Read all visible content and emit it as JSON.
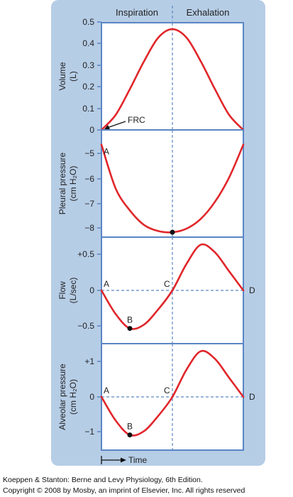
{
  "header": {
    "inspiration": "Inspiration",
    "exhalation": "Exhalation"
  },
  "time_label": "Time",
  "credit": {
    "line1": "Koeppen & Stanton: Berne and Levy Physiology, 6th Edition.",
    "line2": "Copyright © 2008 by Mosby, an imprint of Elsevier, Inc. All rights reserved"
  },
  "colors": {
    "curve": "#e0262a",
    "frame": "#5a86c4",
    "background": "#b6cde6",
    "plot": "#ffffff"
  },
  "chart_data": [
    {
      "type": "line",
      "ylabel": [
        "Volume",
        "(L)"
      ],
      "ylim": [
        0,
        0.5
      ],
      "yticks": [
        "0",
        "0.1",
        "0.2",
        "0.3",
        "0.4",
        "0.5"
      ],
      "x": [
        0,
        0.1,
        0.2,
        0.3,
        0.4,
        0.5,
        0.6,
        0.7,
        0.8,
        0.9,
        1.0
      ],
      "series": [
        {
          "values": [
            0.0,
            0.07,
            0.19,
            0.32,
            0.43,
            0.47,
            0.43,
            0.32,
            0.19,
            0.07,
            0.0
          ]
        }
      ],
      "annotations": [
        {
          "text": "FRC",
          "x": 0,
          "y": 0
        }
      ]
    },
    {
      "type": "line",
      "ylabel": [
        "Pleural pressure",
        "(cm H₂O)"
      ],
      "ylim": [
        -8.4,
        -4
      ],
      "yticks": [
        "−5",
        "−6",
        "−7",
        "−8"
      ],
      "x": [
        0,
        0.1,
        0.2,
        0.3,
        0.4,
        0.5,
        0.6,
        0.7,
        0.8,
        0.9,
        1.0
      ],
      "series": [
        {
          "values": [
            -4.6,
            -6.4,
            -7.3,
            -7.9,
            -8.15,
            -8.2,
            -8.05,
            -7.65,
            -6.95,
            -5.95,
            -4.6
          ]
        }
      ],
      "points": [
        {
          "label": "A",
          "x": 0,
          "y": -4.6
        },
        {
          "label": "",
          "x": 0.5,
          "y": -8.2
        }
      ]
    },
    {
      "type": "line",
      "ylabel": [
        "Flow",
        "(L/sec)"
      ],
      "ylim": [
        -0.7,
        0.7
      ],
      "yticks": [
        "+0.5",
        "0",
        "−0.5"
      ],
      "x": [
        0,
        0.1,
        0.2,
        0.3,
        0.4,
        0.5,
        0.6,
        0.7,
        0.8,
        0.9,
        1.0
      ],
      "series": [
        {
          "values": [
            0,
            -0.31,
            -0.5,
            -0.45,
            -0.25,
            0,
            0.35,
            0.6,
            0.5,
            0.25,
            0
          ]
        }
      ],
      "points": [
        {
          "label": "A",
          "x": 0,
          "y": 0
        },
        {
          "label": "B",
          "x": 0.2,
          "y": -0.5
        },
        {
          "label": "C",
          "x": 0.5,
          "y": 0
        },
        {
          "label": "D",
          "x": 1.0,
          "y": 0
        }
      ]
    },
    {
      "type": "line",
      "ylabel": [
        "Alveolar pressure",
        "(cm H₂O)"
      ],
      "ylim": [
        -1.4,
        1.4
      ],
      "yticks": [
        "+1",
        "0",
        "−1"
      ],
      "x": [
        0,
        0.1,
        0.2,
        0.3,
        0.4,
        0.5,
        0.6,
        0.7,
        0.8,
        0.9,
        1.0
      ],
      "series": [
        {
          "values": [
            0,
            -0.62,
            -1.0,
            -0.9,
            -0.5,
            0,
            0.72,
            1.2,
            1.0,
            0.5,
            0
          ]
        }
      ],
      "points": [
        {
          "label": "A",
          "x": 0,
          "y": 0
        },
        {
          "label": "B",
          "x": 0.2,
          "y": -1.0
        },
        {
          "label": "C",
          "x": 0.5,
          "y": 0
        },
        {
          "label": "D",
          "x": 1.0,
          "y": 0
        }
      ]
    }
  ]
}
